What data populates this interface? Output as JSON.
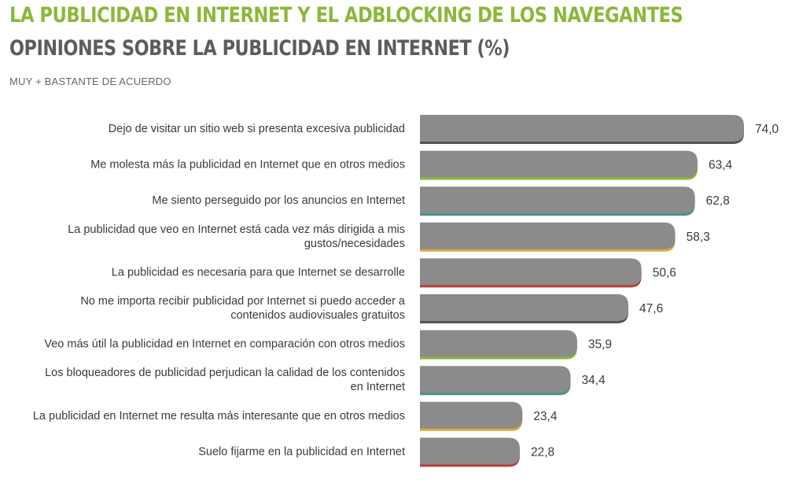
{
  "header": {
    "title": "LA PUBLICIDAD EN INTERNET Y EL ADBLOCKING DE LOS NAVEGANTES",
    "subtitle": "OPINIONES SOBRE LA PUBLICIDAD EN INTERNET (%)",
    "caption": "MUY + BASTANTE DE ACUERDO"
  },
  "colors": {
    "title": "#8bb83a",
    "subtitle": "#5c5c5c",
    "bar": "#8b8b8b",
    "accents": [
      "#555555",
      "#8bb83a",
      "#4a9290",
      "#e0a63d",
      "#b5413a"
    ]
  },
  "chart_data": {
    "type": "bar",
    "orientation": "horizontal",
    "title": "OPINIONES SOBRE LA PUBLICIDAD EN INTERNET (%)",
    "subtitle": "MUY + BASTANTE DE ACUERDO",
    "categories": [
      [
        "Dejo de visitar un sitio web si presenta excesiva publicidad"
      ],
      [
        "Me molesta más la publicidad en Internet que en otros medios"
      ],
      [
        "Me siento perseguido por los anuncios en Internet"
      ],
      [
        "La publicidad que veo en Internet está cada vez más dirigida a mis",
        "gustos/necesidades"
      ],
      [
        "La publicidad es necesaria para que Internet se desarrolle"
      ],
      [
        "No me importa recibir publicidad por Internet si puedo acceder a",
        "contenidos audiovisuales gratuitos"
      ],
      [
        "Veo más útil la publicidad en Internet en comparación con otros medios"
      ],
      [
        "Los bloqueadores de publicidad perjudican la calidad de los contenidos",
        "en Internet"
      ],
      [
        "La publicidad en Internet me resulta más interesante que en otros medios"
      ],
      [
        "Suelo fijarme en la publicidad en Internet"
      ]
    ],
    "values": [
      74.0,
      63.4,
      62.8,
      58.3,
      50.6,
      47.6,
      35.9,
      34.4,
      23.4,
      22.8
    ],
    "value_labels": [
      "74,0",
      "63,4",
      "62,8",
      "58,3",
      "50,6",
      "47,6",
      "35,9",
      "34,4",
      "23,4",
      "22,8"
    ],
    "xlim": [
      0,
      74
    ],
    "grid": false,
    "legend": "none"
  }
}
